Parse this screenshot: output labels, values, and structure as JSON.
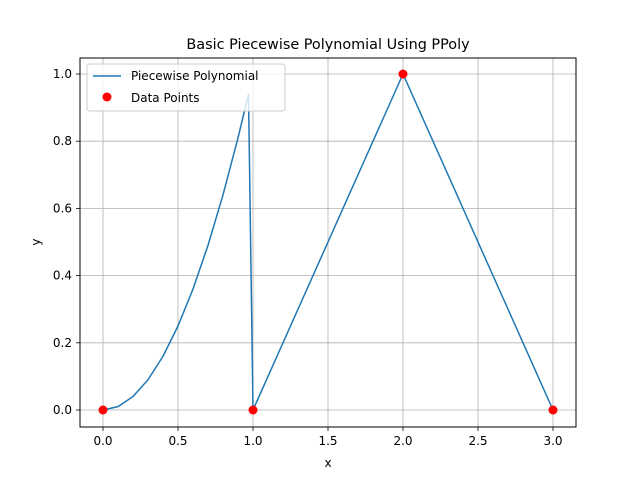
{
  "chart_data": {
    "type": "line",
    "title": "Basic Piecewise Polynomial Using PPoly",
    "xlabel": "x",
    "ylabel": "y",
    "xlim": [
      -0.15,
      3.15
    ],
    "ylim": [
      -0.05,
      1.05
    ],
    "xticks": [
      "0.0",
      "0.5",
      "1.0",
      "1.5",
      "2.0",
      "2.5",
      "3.0"
    ],
    "yticks": [
      "0.0",
      "0.2",
      "0.4",
      "0.6",
      "0.8",
      "1.0"
    ],
    "grid": true,
    "legend_position": "upper left",
    "series": [
      {
        "name": "Piecewise Polynomial",
        "kind": "line",
        "color": "#1f77b4",
        "x": [
          0.0,
          0.1,
          0.2,
          0.3,
          0.4,
          0.5,
          0.6,
          0.7,
          0.8,
          0.9,
          0.97,
          1.0,
          2.0,
          3.0
        ],
        "y": [
          0.0,
          0.01,
          0.04,
          0.09,
          0.16,
          0.25,
          0.36,
          0.49,
          0.64,
          0.81,
          0.94,
          0.0,
          1.0,
          0.0
        ]
      },
      {
        "name": "Data Points",
        "kind": "scatter",
        "color": "#ff0000",
        "x": [
          0,
          1,
          2,
          3
        ],
        "y": [
          0,
          0,
          1,
          0
        ]
      }
    ]
  },
  "legend": {
    "items": [
      {
        "label": "Piecewise Polynomial"
      },
      {
        "label": "Data Points"
      }
    ]
  }
}
